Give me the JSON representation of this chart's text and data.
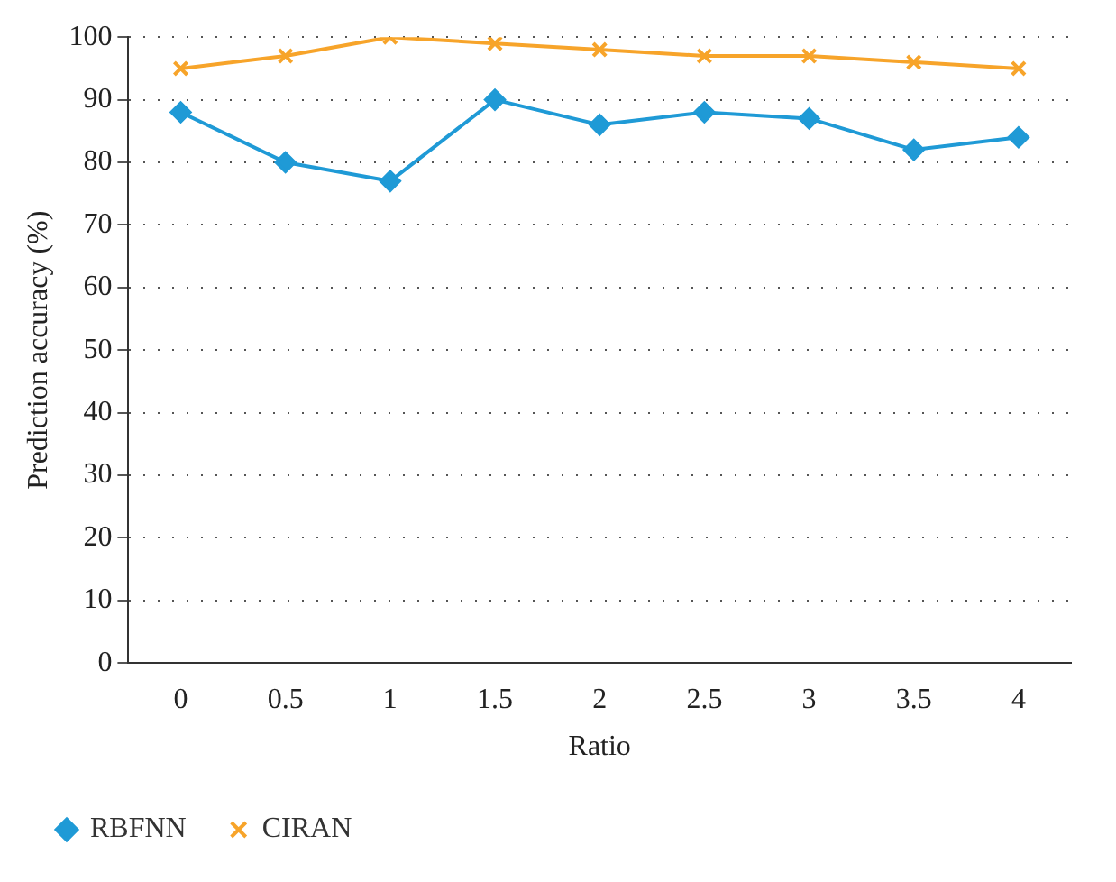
{
  "chart_data": {
    "type": "line",
    "xlabel": "Ratio",
    "ylabel": "Prediction accuracy (%)",
    "categories": [
      "0",
      "0.5",
      "1",
      "1.5",
      "2",
      "2.5",
      "3",
      "3.5",
      "4"
    ],
    "series": [
      {
        "name": "RBFNN",
        "color": "#1f9ad6",
        "marker": "diamond",
        "values": [
          88,
          80,
          77,
          90,
          86,
          88,
          87,
          82,
          84
        ]
      },
      {
        "name": "CIRAN",
        "color": "#f7a42a",
        "marker": "cross",
        "values": [
          95,
          97,
          100,
          99,
          98,
          97,
          97,
          96,
          95
        ]
      }
    ],
    "ylim": [
      0,
      100
    ],
    "yticks": [
      0,
      10,
      20,
      30,
      40,
      50,
      60,
      70,
      80,
      90,
      100
    ],
    "grid": "y",
    "legend": "bottom left",
    "line_style": "solid"
  }
}
